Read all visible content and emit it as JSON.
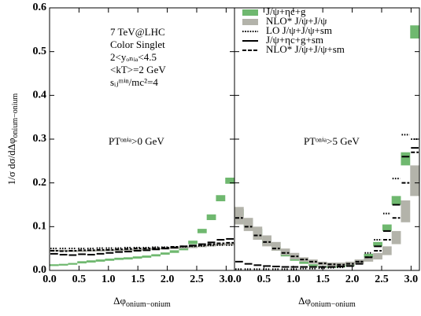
{
  "chart_data": [
    {
      "type": "histogram",
      "y_label": {
        "main": "1/σ dσ/dΔφ",
        "sub": "onium−onium"
      },
      "x_label": {
        "main": "Δφ",
        "sub": "onium−onium"
      },
      "annotations": [
        "7 TeV@LHC",
        "Color Singlet",
        "2<yₒₙᵢₐ<4.5",
        "<kT>=2 GeV",
        "sᵢⱼᵐⁱⁿ/mc²=4"
      ],
      "cut_label": "PTᵒⁿⁱᵃ>0 GeV",
      "xlim": [
        0,
        3.142
      ],
      "ylim": [
        0,
        0.6
      ],
      "xticks": [
        {
          "value": 0,
          "label": "0.0"
        },
        0.5,
        {
          "value": 1,
          "label": "1.0"
        },
        1.5,
        {
          "value": 2,
          "label": "2.0"
        },
        2.5,
        {
          "value": 3,
          "label": "3.0"
        }
      ],
      "yticks": [
        {
          "value": 0,
          "label": "0.0"
        },
        0.1,
        0.2,
        0.3,
        0.4,
        0.5,
        0.6
      ],
      "bins": [
        0,
        0.157,
        0.314,
        0.471,
        0.628,
        0.785,
        0.942,
        1.1,
        1.257,
        1.414,
        1.571,
        1.728,
        1.885,
        2.042,
        2.199,
        2.356,
        2.513,
        2.67,
        2.827,
        2.985,
        3.142
      ],
      "series": [
        {
          "style": "band",
          "color": "#6fb86f",
          "low": [
            0.01,
            0.011,
            0.013,
            0.016,
            0.018,
            0.02,
            0.022,
            0.024,
            0.025,
            0.027,
            0.029,
            0.032,
            0.036,
            0.04,
            0.046,
            0.06,
            0.085,
            0.115,
            0.158,
            0.198
          ],
          "high": [
            0.014,
            0.015,
            0.017,
            0.021,
            0.023,
            0.025,
            0.027,
            0.029,
            0.03,
            0.032,
            0.034,
            0.037,
            0.041,
            0.046,
            0.052,
            0.068,
            0.095,
            0.128,
            0.172,
            0.212
          ]
        },
        {
          "style": "band",
          "color": "#b3b3aa",
          "low": [
            0.043,
            0.043,
            0.042,
            0.042,
            0.043,
            0.043,
            0.044,
            0.044,
            0.045,
            0.045,
            0.046,
            0.047,
            0.048,
            0.049,
            0.05,
            0.051,
            0.053,
            0.055,
            0.057,
            0.058
          ],
          "high": [
            0.047,
            0.047,
            0.046,
            0.046,
            0.047,
            0.047,
            0.048,
            0.048,
            0.049,
            0.049,
            0.05,
            0.051,
            0.052,
            0.053,
            0.054,
            0.055,
            0.057,
            0.059,
            0.061,
            0.062
          ]
        },
        {
          "style": "dotted",
          "color": "#000000",
          "values": [
            0.05,
            0.05,
            0.05,
            0.05,
            0.05,
            0.051,
            0.051,
            0.051,
            0.052,
            0.052,
            0.052,
            0.053,
            0.053,
            0.054,
            0.054,
            0.055,
            0.056,
            0.057,
            0.058,
            0.058
          ]
        },
        {
          "style": "solid",
          "color": "#000000",
          "values": [
            0.038,
            0.036,
            0.035,
            0.037,
            0.036,
            0.038,
            0.04,
            0.042,
            0.043,
            0.045,
            0.046,
            0.048,
            0.05,
            0.052,
            0.055,
            0.057,
            0.06,
            0.064,
            0.07,
            0.072
          ]
        },
        {
          "style": "dashed",
          "color": "#000000",
          "values": [
            0.045,
            0.044,
            0.045,
            0.046,
            0.046,
            0.047,
            0.047,
            0.048,
            0.049,
            0.05,
            0.05,
            0.051,
            0.052,
            0.054,
            0.055,
            0.056,
            0.058,
            0.06,
            0.062,
            0.063
          ]
        }
      ]
    },
    {
      "type": "histogram",
      "x_label": {
        "main": "Δφ",
        "sub": "onium−onium"
      },
      "cut_label": "PTᵒⁿⁱᵃ>5 GeV",
      "xlim": [
        0,
        3.142
      ],
      "ylim": [
        0,
        0.6
      ],
      "xticks": [
        {
          "value": 0,
          "label": "0.0"
        },
        0.5,
        {
          "value": 1,
          "label": "1.0"
        },
        1.5,
        {
          "value": 2,
          "label": "2.0"
        },
        2.5,
        {
          "value": 3,
          "label": "3.0"
        }
      ],
      "yticks": [
        0,
        0.1,
        0.2,
        0.3,
        0.4,
        0.5,
        0.6
      ],
      "bins": [
        0,
        0.157,
        0.314,
        0.471,
        0.628,
        0.785,
        0.942,
        1.1,
        1.257,
        1.414,
        1.571,
        1.728,
        1.885,
        2.042,
        2.199,
        2.356,
        2.513,
        2.67,
        2.827,
        2.985,
        3.142
      ],
      "series": [
        {
          "name": "J/ψ+ηc+g",
          "style": "band",
          "color": "#6fb86f",
          "low": [
            0.125,
            0.1,
            0.08,
            0.06,
            0.045,
            0.032,
            0.022,
            0.015,
            0.01,
            0.007,
            0.006,
            0.007,
            0.01,
            0.018,
            0.03,
            0.055,
            0.09,
            0.15,
            0.24,
            0.53
          ],
          "high": [
            0.14,
            0.115,
            0.095,
            0.072,
            0.055,
            0.04,
            0.028,
            0.02,
            0.014,
            0.01,
            0.009,
            0.01,
            0.014,
            0.024,
            0.038,
            0.065,
            0.105,
            0.17,
            0.27,
            0.56
          ]
        },
        {
          "name": "NLO* J/ψ+J/ψ",
          "style": "band",
          "color": "#b3b3aa",
          "low": [
            0.105,
            0.09,
            0.07,
            0.055,
            0.045,
            0.035,
            0.025,
            0.02,
            0.015,
            0.012,
            0.01,
            0.01,
            0.012,
            0.015,
            0.02,
            0.025,
            0.035,
            0.06,
            0.11,
            0.17
          ],
          "high": [
            0.145,
            0.12,
            0.1,
            0.08,
            0.065,
            0.05,
            0.04,
            0.03,
            0.025,
            0.02,
            0.018,
            0.018,
            0.02,
            0.025,
            0.03,
            0.04,
            0.055,
            0.09,
            0.16,
            0.24
          ]
        },
        {
          "name": "LO J/ψ+J/ψ+sm",
          "style": "dotted",
          "color": "#000000",
          "values": [
            0.003,
            0.003,
            0.003,
            0.003,
            0.003,
            0.003,
            0.003,
            0.004,
            0.004,
            0.005,
            0.006,
            0.007,
            0.01,
            0.02,
            0.04,
            0.07,
            0.13,
            0.21,
            0.31,
            0.3
          ]
        },
        {
          "name": "J/ψ+ηc+g+sm",
          "style": "solid",
          "color": "#000000",
          "values": [
            0.02,
            0.015,
            0.012,
            0.01,
            0.009,
            0.008,
            0.008,
            0.008,
            0.008,
            0.008,
            0.008,
            0.009,
            0.01,
            0.015,
            0.03,
            0.055,
            0.09,
            0.15,
            0.26,
            0.28
          ]
        },
        {
          "name": "NLO* J/ψ+J/ψ+sm",
          "style": "dashed",
          "color": "#000000",
          "values": [
            0.12,
            0.1,
            0.08,
            0.065,
            0.05,
            0.04,
            0.032,
            0.025,
            0.02,
            0.016,
            0.014,
            0.013,
            0.015,
            0.02,
            0.03,
            0.045,
            0.07,
            0.12,
            0.2,
            0.27
          ]
        }
      ]
    }
  ]
}
